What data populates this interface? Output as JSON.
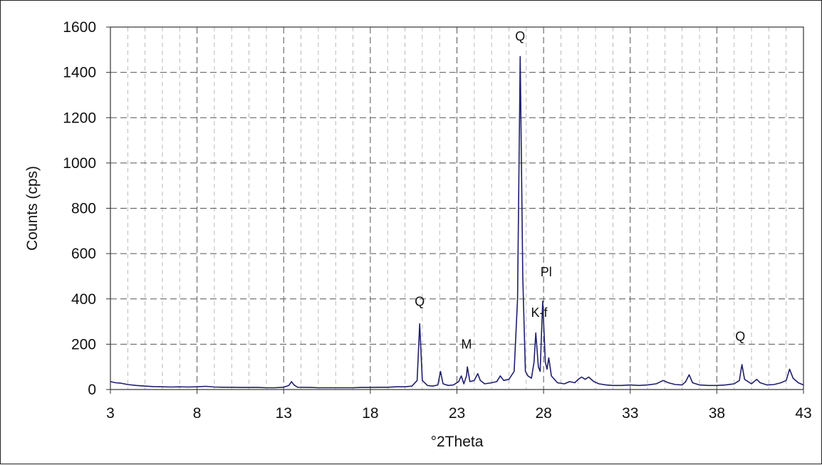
{
  "chart_data": {
    "type": "line",
    "title": "",
    "xlabel": "°2Theta",
    "ylabel": "Counts (cps)",
    "xlim": [
      3,
      43
    ],
    "ylim": [
      0,
      1600
    ],
    "x_major_ticks": [
      3,
      8,
      13,
      18,
      23,
      28,
      33,
      38,
      43
    ],
    "y_ticks": [
      0,
      200,
      400,
      600,
      800,
      1000,
      1200,
      1400,
      1600
    ],
    "grid": {
      "major": true,
      "minor_x": true,
      "style": "dashed"
    },
    "legend": "none",
    "colors": {
      "line": "#1f1f6e",
      "grid_major": "#555555",
      "grid_minor": "#aaaaaa"
    },
    "series": [
      {
        "name": "",
        "points": [
          [
            3.0,
            35
          ],
          [
            3.3,
            30
          ],
          [
            3.6,
            28
          ],
          [
            4.0,
            22
          ],
          [
            4.5,
            18
          ],
          [
            5.0,
            15
          ],
          [
            5.5,
            13
          ],
          [
            6.0,
            12
          ],
          [
            6.5,
            11
          ],
          [
            7.0,
            12
          ],
          [
            7.5,
            11
          ],
          [
            8.0,
            12
          ],
          [
            8.5,
            14
          ],
          [
            9.0,
            11
          ],
          [
            9.5,
            10
          ],
          [
            10.0,
            10
          ],
          [
            10.5,
            9
          ],
          [
            11.0,
            9
          ],
          [
            11.5,
            9
          ],
          [
            12.0,
            8
          ],
          [
            12.5,
            8
          ],
          [
            13.0,
            10
          ],
          [
            13.3,
            18
          ],
          [
            13.45,
            35
          ],
          [
            13.6,
            20
          ],
          [
            13.8,
            10
          ],
          [
            14.5,
            9
          ],
          [
            15.0,
            8
          ],
          [
            15.5,
            8
          ],
          [
            16.0,
            8
          ],
          [
            16.5,
            8
          ],
          [
            17.0,
            8
          ],
          [
            17.5,
            9
          ],
          [
            18.0,
            9
          ],
          [
            18.5,
            10
          ],
          [
            19.0,
            10
          ],
          [
            19.5,
            12
          ],
          [
            20.0,
            12
          ],
          [
            20.4,
            15
          ],
          [
            20.7,
            40
          ],
          [
            20.85,
            290
          ],
          [
            21.0,
            40
          ],
          [
            21.3,
            18
          ],
          [
            21.6,
            15
          ],
          [
            21.9,
            20
          ],
          [
            22.05,
            80
          ],
          [
            22.2,
            25
          ],
          [
            22.5,
            18
          ],
          [
            22.8,
            20
          ],
          [
            23.1,
            35
          ],
          [
            23.25,
            60
          ],
          [
            23.4,
            25
          ],
          [
            23.55,
            60
          ],
          [
            23.6,
            100
          ],
          [
            23.75,
            35
          ],
          [
            24.0,
            40
          ],
          [
            24.2,
            70
          ],
          [
            24.35,
            40
          ],
          [
            24.6,
            25
          ],
          [
            25.0,
            30
          ],
          [
            25.3,
            35
          ],
          [
            25.5,
            60
          ],
          [
            25.7,
            40
          ],
          [
            26.0,
            45
          ],
          [
            26.3,
            80
          ],
          [
            26.5,
            400
          ],
          [
            26.65,
            1470
          ],
          [
            26.8,
            500
          ],
          [
            26.95,
            80
          ],
          [
            27.1,
            60
          ],
          [
            27.3,
            50
          ],
          [
            27.45,
            120
          ],
          [
            27.55,
            250
          ],
          [
            27.7,
            100
          ],
          [
            27.8,
            80
          ],
          [
            27.95,
            390
          ],
          [
            28.1,
            120
          ],
          [
            28.2,
            90
          ],
          [
            28.3,
            140
          ],
          [
            28.45,
            60
          ],
          [
            28.8,
            30
          ],
          [
            29.2,
            25
          ],
          [
            29.5,
            35
          ],
          [
            29.8,
            30
          ],
          [
            30.0,
            45
          ],
          [
            30.2,
            55
          ],
          [
            30.4,
            45
          ],
          [
            30.6,
            55
          ],
          [
            30.9,
            35
          ],
          [
            31.2,
            25
          ],
          [
            31.6,
            20
          ],
          [
            32.0,
            18
          ],
          [
            32.5,
            18
          ],
          [
            33.0,
            20
          ],
          [
            33.5,
            18
          ],
          [
            34.0,
            20
          ],
          [
            34.5,
            25
          ],
          [
            34.9,
            40
          ],
          [
            35.2,
            30
          ],
          [
            35.6,
            22
          ],
          [
            36.0,
            20
          ],
          [
            36.2,
            35
          ],
          [
            36.4,
            65
          ],
          [
            36.6,
            30
          ],
          [
            37.0,
            20
          ],
          [
            37.5,
            18
          ],
          [
            38.0,
            18
          ],
          [
            38.5,
            20
          ],
          [
            39.0,
            25
          ],
          [
            39.3,
            40
          ],
          [
            39.45,
            110
          ],
          [
            39.6,
            45
          ],
          [
            40.0,
            25
          ],
          [
            40.3,
            45
          ],
          [
            40.5,
            30
          ],
          [
            40.9,
            20
          ],
          [
            41.3,
            22
          ],
          [
            41.7,
            30
          ],
          [
            42.0,
            40
          ],
          [
            42.2,
            90
          ],
          [
            42.4,
            50
          ],
          [
            42.7,
            30
          ],
          [
            43.0,
            20
          ]
        ]
      }
    ],
    "annotations": [
      {
        "text": "Q",
        "x": 26.65,
        "y": 1540
      },
      {
        "text": "Q",
        "x": 20.85,
        "y": 370
      },
      {
        "text": "M",
        "x": 23.55,
        "y": 180
      },
      {
        "text": "K-f",
        "x": 27.75,
        "y": 320
      },
      {
        "text": "Pl",
        "x": 28.15,
        "y": 500
      },
      {
        "text": "Q",
        "x": 39.35,
        "y": 215
      }
    ]
  }
}
